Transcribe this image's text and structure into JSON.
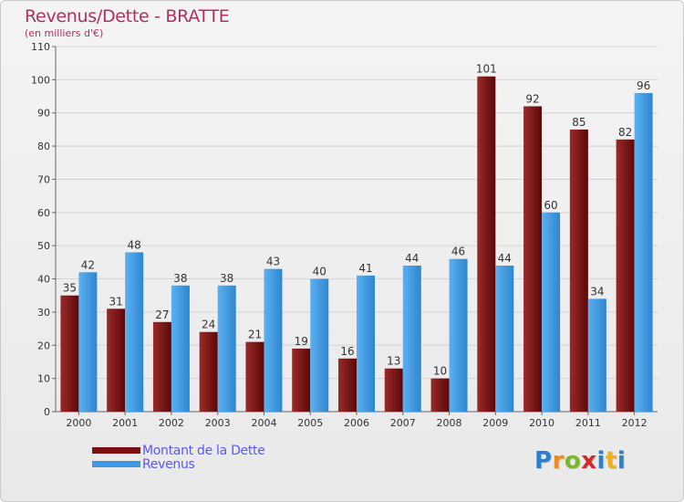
{
  "chart_data": {
    "type": "bar",
    "title": "Revenus/Dette - BRATTE",
    "subtitle": "(en milliers d'€)",
    "categories": [
      "2000",
      "2001",
      "2002",
      "2003",
      "2004",
      "2005",
      "2006",
      "2007",
      "2008",
      "2009",
      "2010",
      "2011",
      "2012"
    ],
    "series": [
      {
        "name": "Montant de la Dette",
        "color": "#7a1010",
        "values": [
          35,
          31,
          27,
          24,
          21,
          19,
          16,
          13,
          10,
          101,
          92,
          85,
          82
        ]
      },
      {
        "name": "Revenus",
        "color": "#3f98e0",
        "values": [
          42,
          48,
          38,
          38,
          43,
          40,
          41,
          44,
          46,
          44,
          60,
          34,
          96
        ]
      }
    ],
    "ylim": [
      0,
      110
    ],
    "yticks": [
      0,
      10,
      20,
      30,
      40,
      50,
      60,
      70,
      80,
      90,
      100,
      110
    ],
    "grid": true,
    "legend_position": "bottom-left"
  },
  "logo": {
    "letters": [
      "P",
      "r",
      "o",
      "x",
      "i",
      "t",
      "i"
    ],
    "colors": [
      "#2a7fd0",
      "#f08a1a",
      "#7ab82a",
      "#d02a2a",
      "#2a7fd0",
      "#f0b01a",
      "#2a7fd0"
    ]
  }
}
